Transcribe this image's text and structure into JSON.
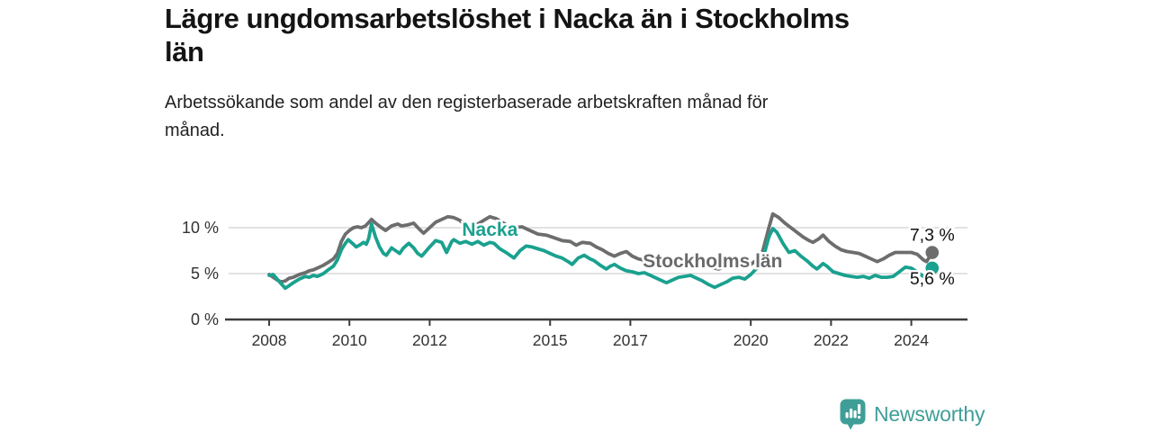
{
  "header": {
    "title_lines": [
      "Lägre ungdomsarbetslöshet i Nacka än i Stockholms",
      "län"
    ],
    "subtitle_lines": [
      "Arbetssökande som andel av den registerbaserade arbetskraften månad för",
      "månad."
    ]
  },
  "branding": {
    "logo_text": "Newsworthy",
    "logo_color": "#3f9e97",
    "logo_icon": "bar-chart-speech-bubble-icon"
  },
  "chart_data": {
    "type": "line",
    "title": "Lägre ungdomsarbetslöshet i Nacka än i Stockholms län",
    "subtitle": "Arbetssökande som andel av den registerbaserade arbetskraften månad för månad.",
    "unit": "percent",
    "grid": "horizontal-only",
    "legend_position": "inline-labels",
    "x_domain": [
      2006.9,
      2025.4
    ],
    "y_domain": [
      0,
      13
    ],
    "x_ticks": [
      2008,
      2010,
      2012,
      2015,
      2017,
      2020,
      2022,
      2024
    ],
    "y_ticks": [
      {
        "value": 0,
        "label": "0 %"
      },
      {
        "value": 5,
        "label": "5 %"
      },
      {
        "value": 10,
        "label": "10 %"
      }
    ],
    "axis_color": "#3d3d3d",
    "grid_color": "#d9d9d9",
    "tick_label_color": "#333333",
    "series": [
      {
        "id": "stockholms-lan",
        "name": "Stockholms län",
        "color": "#6d6d6d",
        "end_label": "7,3 %",
        "end_value": 7.3,
        "label_pos": {
          "x": 2019.05,
          "y": 6.35
        },
        "end_label_offset": [
          0,
          -13
        ],
        "points": [
          [
            2008.0,
            4.9
          ],
          [
            2008.1,
            4.6
          ],
          [
            2008.2,
            4.3
          ],
          [
            2008.3,
            4.1
          ],
          [
            2008.4,
            4.2
          ],
          [
            2008.5,
            4.5
          ],
          [
            2008.6,
            4.6
          ],
          [
            2008.75,
            4.9
          ],
          [
            2008.9,
            5.1
          ],
          [
            2009.0,
            5.3
          ],
          [
            2009.1,
            5.4
          ],
          [
            2009.2,
            5.6
          ],
          [
            2009.35,
            5.9
          ],
          [
            2009.5,
            6.3
          ],
          [
            2009.6,
            6.6
          ],
          [
            2009.7,
            7.2
          ],
          [
            2009.8,
            8.5
          ],
          [
            2009.9,
            9.3
          ],
          [
            2010.0,
            9.7
          ],
          [
            2010.1,
            10.0
          ],
          [
            2010.2,
            10.1
          ],
          [
            2010.3,
            10.0
          ],
          [
            2010.4,
            10.2
          ],
          [
            2010.55,
            10.9
          ],
          [
            2010.65,
            10.5
          ],
          [
            2010.8,
            10.0
          ],
          [
            2010.9,
            9.7
          ],
          [
            2011.05,
            10.2
          ],
          [
            2011.2,
            10.4
          ],
          [
            2011.3,
            10.2
          ],
          [
            2011.45,
            10.3
          ],
          [
            2011.6,
            10.5
          ],
          [
            2011.75,
            9.8
          ],
          [
            2011.85,
            9.4
          ],
          [
            2012.0,
            10.0
          ],
          [
            2012.15,
            10.6
          ],
          [
            2012.3,
            10.9
          ],
          [
            2012.45,
            11.2
          ],
          [
            2012.6,
            11.1
          ],
          [
            2012.75,
            10.8
          ],
          [
            2012.9,
            10.2
          ],
          [
            2013.05,
            10.0
          ],
          [
            2013.2,
            10.4
          ],
          [
            2013.35,
            10.8
          ],
          [
            2013.5,
            11.2
          ],
          [
            2013.65,
            11.0
          ],
          [
            2013.8,
            10.6
          ],
          [
            2013.95,
            10.2
          ],
          [
            2014.1,
            10.0
          ],
          [
            2014.3,
            10.1
          ],
          [
            2014.5,
            9.7
          ],
          [
            2014.7,
            9.3
          ],
          [
            2014.9,
            9.2
          ],
          [
            2015.1,
            8.9
          ],
          [
            2015.3,
            8.6
          ],
          [
            2015.5,
            8.5
          ],
          [
            2015.65,
            8.1
          ],
          [
            2015.8,
            8.4
          ],
          [
            2016.0,
            8.3
          ],
          [
            2016.15,
            7.9
          ],
          [
            2016.3,
            7.6
          ],
          [
            2016.45,
            7.2
          ],
          [
            2016.6,
            6.9
          ],
          [
            2016.75,
            7.2
          ],
          [
            2016.9,
            7.4
          ],
          [
            2017.05,
            6.9
          ],
          [
            2017.2,
            6.6
          ],
          [
            2017.4,
            6.4
          ],
          [
            2017.6,
            6.2
          ],
          [
            2017.8,
            6.0
          ],
          [
            2018.0,
            6.2
          ],
          [
            2018.25,
            6.1
          ],
          [
            2018.5,
            6.2
          ],
          [
            2018.75,
            5.9
          ],
          [
            2019.0,
            5.7
          ],
          [
            2019.2,
            5.5
          ],
          [
            2019.4,
            5.8
          ],
          [
            2019.6,
            6.1
          ],
          [
            2019.8,
            5.9
          ],
          [
            2020.0,
            6.0
          ],
          [
            2020.15,
            6.5
          ],
          [
            2020.3,
            7.5
          ],
          [
            2020.45,
            10.0
          ],
          [
            2020.55,
            11.5
          ],
          [
            2020.7,
            11.1
          ],
          [
            2020.85,
            10.5
          ],
          [
            2021.0,
            10.0
          ],
          [
            2021.15,
            9.5
          ],
          [
            2021.3,
            9.0
          ],
          [
            2021.45,
            8.6
          ],
          [
            2021.55,
            8.4
          ],
          [
            2021.7,
            8.8
          ],
          [
            2021.8,
            9.2
          ],
          [
            2021.95,
            8.5
          ],
          [
            2022.1,
            8.0
          ],
          [
            2022.25,
            7.6
          ],
          [
            2022.4,
            7.4
          ],
          [
            2022.55,
            7.3
          ],
          [
            2022.7,
            7.2
          ],
          [
            2022.85,
            6.9
          ],
          [
            2023.0,
            6.6
          ],
          [
            2023.15,
            6.3
          ],
          [
            2023.3,
            6.6
          ],
          [
            2023.45,
            7.0
          ],
          [
            2023.6,
            7.3
          ],
          [
            2023.8,
            7.3
          ],
          [
            2024.0,
            7.3
          ],
          [
            2024.15,
            7.1
          ],
          [
            2024.3,
            6.5
          ],
          [
            2024.38,
            6.3
          ],
          [
            2024.52,
            7.3
          ]
        ]
      },
      {
        "id": "nacka",
        "name": "Nacka",
        "color": "#1aa18f",
        "end_label": "5,6 %",
        "end_value": 5.6,
        "label_pos": {
          "x": 2013.5,
          "y": 9.8
        },
        "end_label_offset": [
          0,
          18
        ],
        "points": [
          [
            2008.0,
            4.8
          ],
          [
            2008.1,
            4.9
          ],
          [
            2008.2,
            4.4
          ],
          [
            2008.3,
            3.9
          ],
          [
            2008.4,
            3.4
          ],
          [
            2008.5,
            3.7
          ],
          [
            2008.6,
            4.0
          ],
          [
            2008.75,
            4.4
          ],
          [
            2008.9,
            4.7
          ],
          [
            2009.0,
            4.6
          ],
          [
            2009.1,
            4.8
          ],
          [
            2009.2,
            4.7
          ],
          [
            2009.35,
            5.0
          ],
          [
            2009.5,
            5.5
          ],
          [
            2009.6,
            5.8
          ],
          [
            2009.7,
            6.5
          ],
          [
            2009.8,
            7.6
          ],
          [
            2009.9,
            8.3
          ],
          [
            2009.97,
            8.7
          ],
          [
            2010.1,
            8.2
          ],
          [
            2010.17,
            7.9
          ],
          [
            2010.25,
            8.1
          ],
          [
            2010.35,
            8.4
          ],
          [
            2010.42,
            8.2
          ],
          [
            2010.48,
            8.8
          ],
          [
            2010.55,
            10.4
          ],
          [
            2010.65,
            9.0
          ],
          [
            2010.75,
            7.9
          ],
          [
            2010.85,
            7.2
          ],
          [
            2010.92,
            7.0
          ],
          [
            2011.05,
            7.8
          ],
          [
            2011.15,
            7.5
          ],
          [
            2011.25,
            7.2
          ],
          [
            2011.35,
            7.8
          ],
          [
            2011.48,
            8.3
          ],
          [
            2011.6,
            7.8
          ],
          [
            2011.7,
            7.2
          ],
          [
            2011.8,
            6.9
          ],
          [
            2011.9,
            7.4
          ],
          [
            2012.0,
            7.9
          ],
          [
            2012.15,
            8.6
          ],
          [
            2012.3,
            8.4
          ],
          [
            2012.42,
            7.3
          ],
          [
            2012.55,
            8.5
          ],
          [
            2012.6,
            8.7
          ],
          [
            2012.75,
            8.3
          ],
          [
            2012.9,
            8.5
          ],
          [
            2013.05,
            8.2
          ],
          [
            2013.2,
            8.5
          ],
          [
            2013.35,
            8.1
          ],
          [
            2013.5,
            8.4
          ],
          [
            2013.6,
            8.3
          ],
          [
            2013.75,
            7.7
          ],
          [
            2013.9,
            7.3
          ],
          [
            2014.0,
            7.0
          ],
          [
            2014.1,
            6.7
          ],
          [
            2014.25,
            7.5
          ],
          [
            2014.4,
            8.0
          ],
          [
            2014.55,
            7.9
          ],
          [
            2014.7,
            7.7
          ],
          [
            2014.85,
            7.5
          ],
          [
            2015.0,
            7.2
          ],
          [
            2015.15,
            6.9
          ],
          [
            2015.3,
            6.7
          ],
          [
            2015.45,
            6.3
          ],
          [
            2015.55,
            6.0
          ],
          [
            2015.7,
            6.7
          ],
          [
            2015.85,
            7.0
          ],
          [
            2016.0,
            6.6
          ],
          [
            2016.1,
            6.4
          ],
          [
            2016.25,
            5.9
          ],
          [
            2016.4,
            5.5
          ],
          [
            2016.5,
            5.8
          ],
          [
            2016.6,
            6.0
          ],
          [
            2016.75,
            5.6
          ],
          [
            2016.9,
            5.3
          ],
          [
            2017.05,
            5.2
          ],
          [
            2017.2,
            5.0
          ],
          [
            2017.35,
            5.1
          ],
          [
            2017.5,
            4.8
          ],
          [
            2017.65,
            4.5
          ],
          [
            2017.8,
            4.2
          ],
          [
            2017.9,
            4.0
          ],
          [
            2018.05,
            4.3
          ],
          [
            2018.2,
            4.6
          ],
          [
            2018.35,
            4.7
          ],
          [
            2018.5,
            4.8
          ],
          [
            2018.65,
            4.5
          ],
          [
            2018.8,
            4.2
          ],
          [
            2018.95,
            3.8
          ],
          [
            2019.1,
            3.5
          ],
          [
            2019.25,
            3.8
          ],
          [
            2019.4,
            4.1
          ],
          [
            2019.55,
            4.5
          ],
          [
            2019.7,
            4.6
          ],
          [
            2019.85,
            4.4
          ],
          [
            2020.0,
            4.9
          ],
          [
            2020.15,
            5.6
          ],
          [
            2020.3,
            6.6
          ],
          [
            2020.45,
            9.0
          ],
          [
            2020.55,
            9.9
          ],
          [
            2020.65,
            9.5
          ],
          [
            2020.8,
            8.3
          ],
          [
            2020.95,
            7.3
          ],
          [
            2021.1,
            7.5
          ],
          [
            2021.25,
            6.9
          ],
          [
            2021.4,
            6.4
          ],
          [
            2021.55,
            5.8
          ],
          [
            2021.65,
            5.5
          ],
          [
            2021.8,
            6.1
          ],
          [
            2021.9,
            5.8
          ],
          [
            2022.05,
            5.2
          ],
          [
            2022.2,
            5.0
          ],
          [
            2022.35,
            4.8
          ],
          [
            2022.5,
            4.7
          ],
          [
            2022.65,
            4.6
          ],
          [
            2022.8,
            4.7
          ],
          [
            2022.95,
            4.5
          ],
          [
            2023.1,
            4.8
          ],
          [
            2023.25,
            4.6
          ],
          [
            2023.4,
            4.6
          ],
          [
            2023.55,
            4.7
          ],
          [
            2023.7,
            5.2
          ],
          [
            2023.85,
            5.7
          ],
          [
            2024.0,
            5.6
          ],
          [
            2024.1,
            5.3
          ],
          [
            2024.2,
            5.0
          ],
          [
            2024.3,
            4.7
          ],
          [
            2024.4,
            4.6
          ],
          [
            2024.52,
            5.6
          ]
        ]
      }
    ]
  }
}
